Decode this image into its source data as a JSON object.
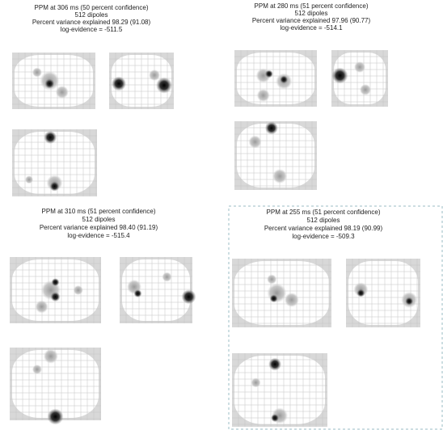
{
  "panels": [
    {
      "title": "PPM at 306 ms (50 percent confidence)",
      "dipoles": "512 dipoles",
      "variance": "Percent variance explained 98.29 (91.08)",
      "evidence": "log-evidence = -511.5"
    },
    {
      "title": "PPM at 280 ms (51 percent confidence)",
      "dipoles": "512 dipoles",
      "variance": "Percent variance explained 97.96 (90.77)",
      "evidence": "log-evidence = -514.1"
    },
    {
      "title": "PPM at 310 ms (51 percent confidence)",
      "dipoles": "512 dipoles",
      "variance": "Percent variance explained 98.40 (91.19)",
      "evidence": "log-evidence = -515.4"
    },
    {
      "title": "PPM at 255 ms (51 percent confidence)",
      "dipoles": "512 dipoles",
      "variance": "Percent variance explained 98.19 (90.99)",
      "evidence": "log-evidence = -509.3"
    }
  ]
}
